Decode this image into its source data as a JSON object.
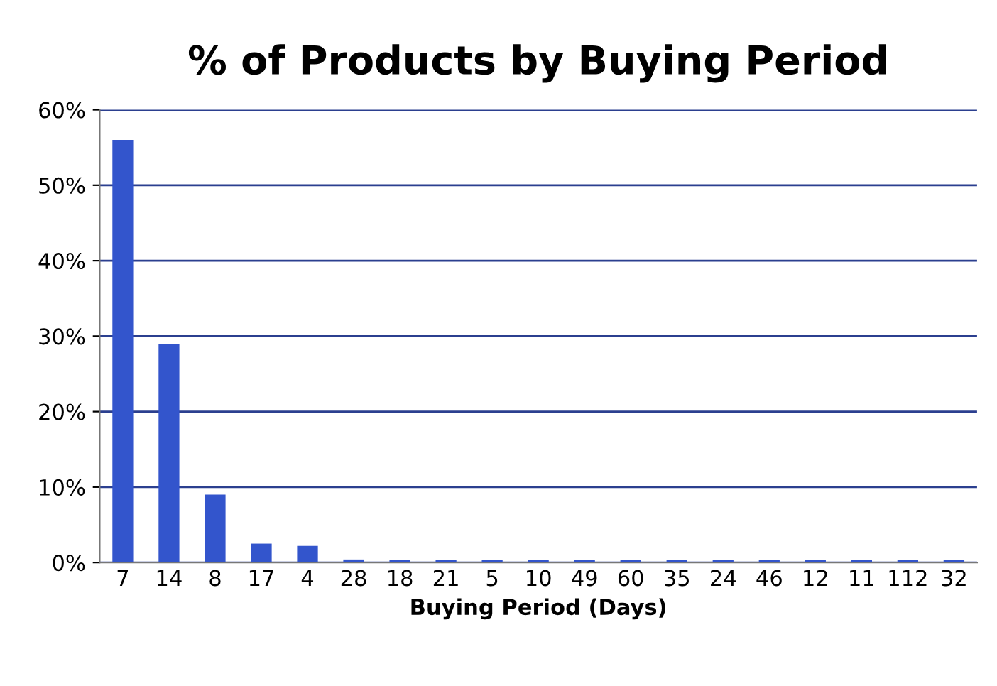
{
  "chart_data": {
    "type": "bar",
    "title": "% of Products by Buying Period",
    "xlabel": "Buying Period (Days)",
    "categories": [
      "7",
      "14",
      "8",
      "17",
      "4",
      "28",
      "18",
      "21",
      "5",
      "10",
      "49",
      "60",
      "35",
      "24",
      "46",
      "12",
      "11",
      "112",
      "32"
    ],
    "values": [
      56,
      29,
      9,
      2.5,
      2.2,
      0.4,
      0.3,
      0.3,
      0.3,
      0.3,
      0.3,
      0.3,
      0.3,
      0.3,
      0.3,
      0.3,
      0.3,
      0.3,
      0.3
    ],
    "color": "#3355cc",
    "ylim": [
      0,
      60
    ],
    "yticks": [
      {
        "value": 0,
        "label": "0%"
      },
      {
        "value": 10,
        "label": "10%"
      },
      {
        "value": 20,
        "label": "20%"
      },
      {
        "value": 30,
        "label": "30%"
      },
      {
        "value": 40,
        "label": "40%"
      },
      {
        "value": 50,
        "label": "50%"
      },
      {
        "value": 60,
        "label": "60%"
      }
    ],
    "grid": "y",
    "legend": false
  }
}
